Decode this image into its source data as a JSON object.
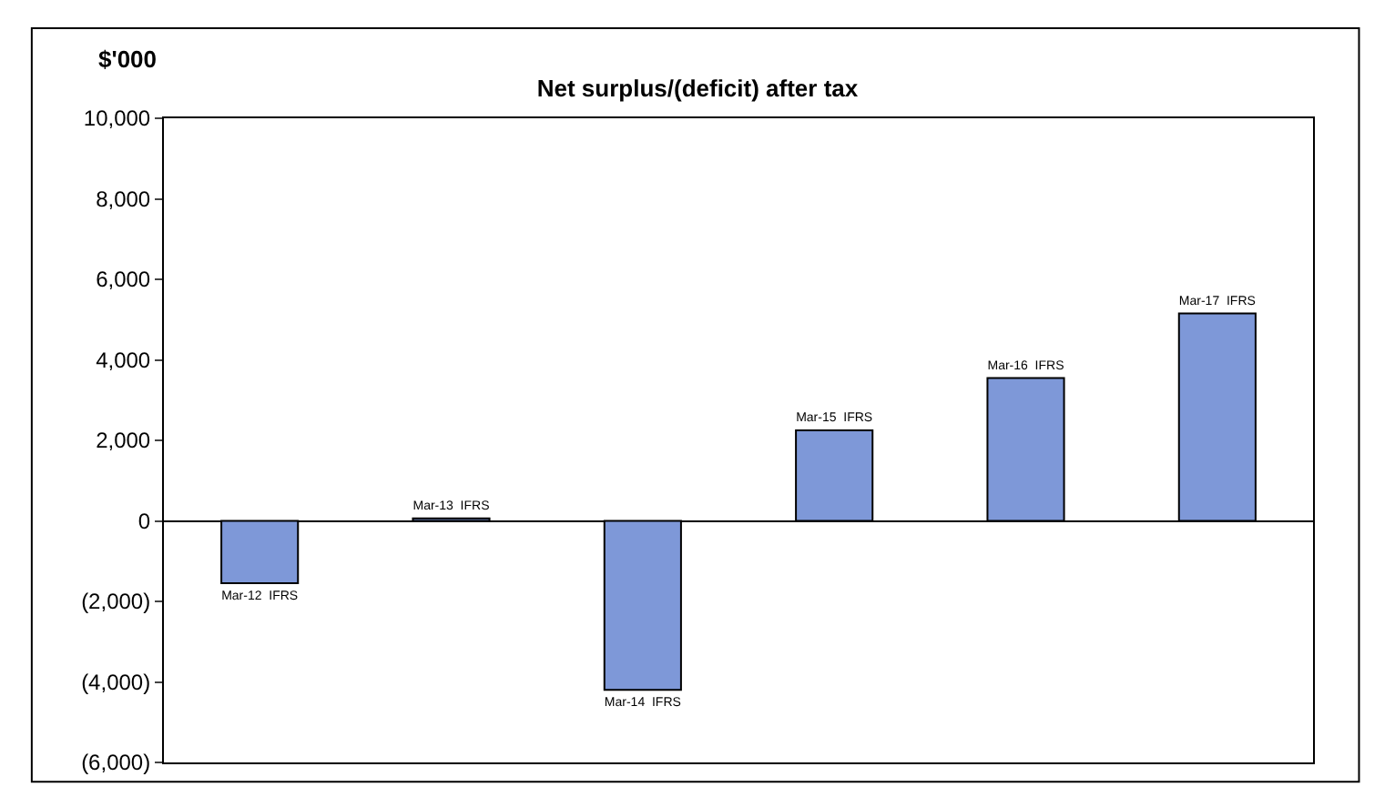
{
  "chart_data": {
    "type": "bar",
    "title": "Net surplus/(deficit) after tax",
    "ylabel": "$'000",
    "categories": [
      "Mar-12  IFRS",
      "Mar-13  IFRS",
      "Mar-14  IFRS",
      "Mar-15  IFRS",
      "Mar-16  IFRS",
      "Mar-17  IFRS"
    ],
    "values": [
      -1550,
      60,
      -4200,
      2250,
      3550,
      5150
    ],
    "color": "#7e98d8",
    "ylim": [
      -6000,
      10000
    ],
    "yticks": [
      {
        "value": -6000,
        "label": "(6,000)"
      },
      {
        "value": -4000,
        "label": "(4,000)"
      },
      {
        "value": -2000,
        "label": "(2,000)"
      },
      0,
      {
        "value": 2000,
        "label": "2,000"
      },
      {
        "value": 4000,
        "label": "4,000"
      },
      {
        "value": 6000,
        "label": "6,000"
      },
      {
        "value": 8000,
        "label": "8,000"
      },
      {
        "value": 10000,
        "label": "10,000"
      }
    ],
    "tick_labels": "y",
    "legend": false
  }
}
